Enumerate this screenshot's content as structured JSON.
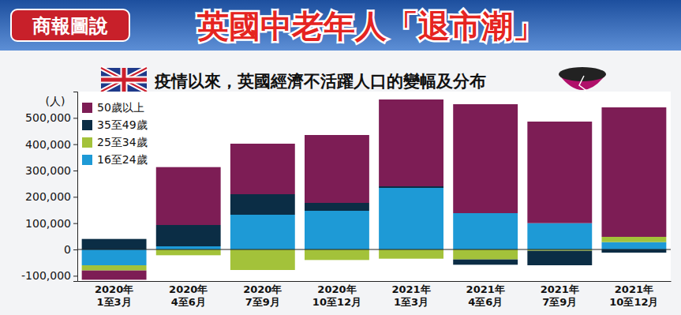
{
  "chart_data": {
    "type": "bar",
    "badge": "商報圖說",
    "title": "英國中老年人「退市潮」",
    "subtitle": "疫情以來，英國經濟不活躍人口的變幅及分布",
    "y_label": "(人)",
    "stacked": true,
    "grid": false,
    "legend": "upper left",
    "categories": [
      "2020年\n1至3月",
      "2020年\n4至6月",
      "2020年\n7至9月",
      "2020年\n10至12月",
      "2021年\n1至3月",
      "2021年\n4至6月",
      "2021年\n7至9月",
      "2021年\n10至12月"
    ],
    "series": [
      {
        "name": "50歲以上",
        "color": "#7d1d55",
        "values": [
          -35000,
          220000,
          192000,
          258000,
          330000,
          414000,
          386000,
          492000
        ]
      },
      {
        "name": "35至49歲",
        "color": "#0b2d45",
        "values": [
          40000,
          81000,
          78000,
          30000,
          6000,
          -20000,
          -55000,
          -12000
        ]
      },
      {
        "name": "25至34歲",
        "color": "#a3c23a",
        "values": [
          -20000,
          -22000,
          -78000,
          -40000,
          -35000,
          -38000,
          -5000,
          20000
        ]
      },
      {
        "name": "16至24歲",
        "color": "#1e9ad6",
        "values": [
          -60000,
          12000,
          132000,
          147000,
          234000,
          138000,
          100000,
          28000
        ]
      }
    ],
    "ylim": [
      -120000,
      600000
    ],
    "yticks": [
      {
        "value": -100000,
        "label": "-100,000"
      },
      0,
      {
        "value": 100000,
        "label": "100,000"
      },
      {
        "value": 200000,
        "label": "200,000"
      },
      {
        "value": 300000,
        "label": "300,000"
      },
      {
        "value": 400000,
        "label": "400,000"
      },
      {
        "value": 500000,
        "label": "500,000"
      }
    ]
  }
}
